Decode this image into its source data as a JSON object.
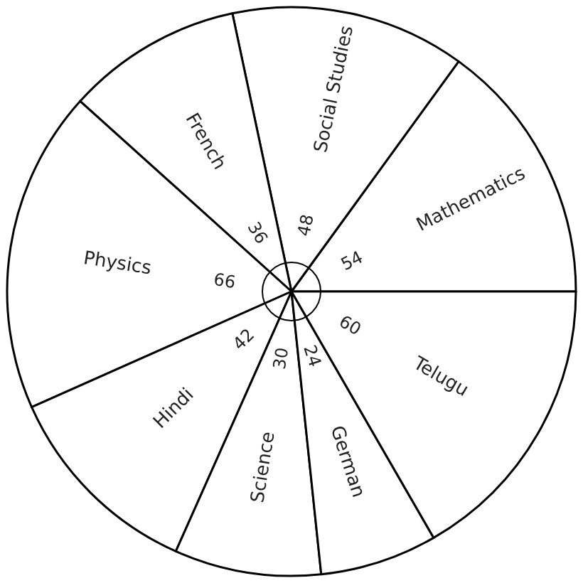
{
  "chart_data": {
    "type": "pie",
    "categories": [
      "Mathematics",
      "Social Studies",
      "French",
      "Physics",
      "Hindi",
      "Science",
      "German",
      "Telugu"
    ],
    "values": [
      54,
      48,
      36,
      66,
      42,
      30,
      24,
      60
    ],
    "colors": [
      "#ffffff",
      "#ffffff",
      "#ffffff",
      "#ffffff",
      "#ffffff",
      "#ffffff",
      "#ffffff",
      "#ffffff"
    ],
    "data_labels": true,
    "legend": false
  }
}
